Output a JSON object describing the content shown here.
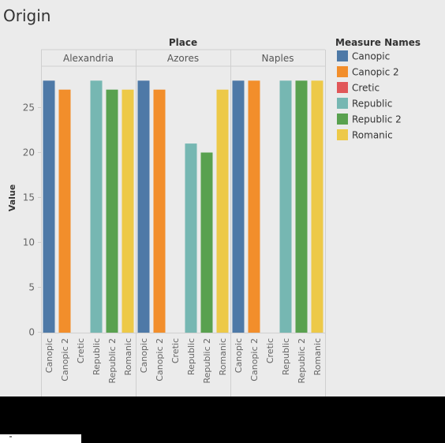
{
  "title": "Origin",
  "chart_data": {
    "type": "bar",
    "column_header": "Place",
    "ylabel": "Value",
    "ylim": [
      0,
      30
    ],
    "yticks": [
      0,
      5,
      10,
      15,
      20,
      25
    ],
    "grid": false,
    "legend": {
      "title": "Measure Names",
      "placement": "right",
      "entries": [
        {
          "name": "Canopic",
          "color": "#4e79a7"
        },
        {
          "name": "Canopic 2",
          "color": "#f28e2b"
        },
        {
          "name": "Cretic",
          "color": "#e15759"
        },
        {
          "name": "Republic",
          "color": "#76b7b2"
        },
        {
          "name": "Republic 2",
          "color": "#59a14f"
        },
        {
          "name": "Romanic",
          "color": "#edc948"
        }
      ]
    },
    "categories": [
      "Canopic",
      "Canopic 2",
      "Cretic",
      "Republic",
      "Republic 2",
      "Romanic"
    ],
    "panels": [
      {
        "place": "Alexandria",
        "values": [
          28,
          27,
          null,
          28,
          27,
          27
        ]
      },
      {
        "place": "Azores",
        "values": [
          28,
          27,
          null,
          21,
          20,
          27
        ]
      },
      {
        "place": "Naples",
        "values": [
          28,
          28,
          null,
          28,
          28,
          28
        ]
      }
    ]
  }
}
